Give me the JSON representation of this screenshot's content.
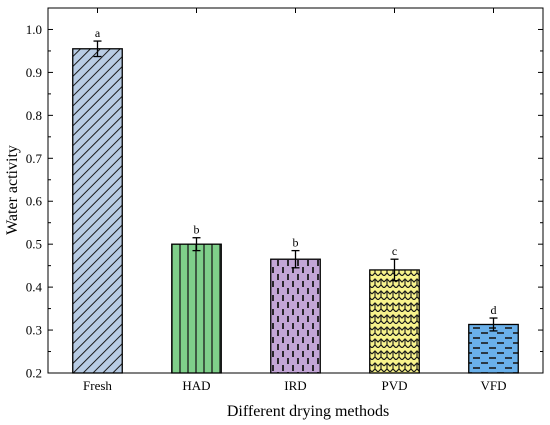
{
  "chart_data": {
    "type": "bar",
    "title": "",
    "xlabel": "Different drying methods",
    "ylabel": "Water activity",
    "categories": [
      "Fresh",
      "HAD",
      "IRD",
      "PVD",
      "VFD"
    ],
    "values": [
      0.955,
      0.5,
      0.465,
      0.44,
      0.313
    ],
    "errors": [
      0.018,
      0.015,
      0.02,
      0.025,
      0.015
    ],
    "significance_labels": [
      "a",
      "b",
      "b",
      "c",
      "d"
    ],
    "ylim": [
      0.2,
      1.05
    ],
    "yticks": [
      0.2,
      0.3,
      0.4,
      0.5,
      0.6,
      0.7,
      0.8,
      0.9,
      1.0
    ],
    "ytick_labels": [
      "0.2",
      "0.3",
      "0.4",
      "0.5",
      "0.6",
      "0.7",
      "0.8",
      "0.9",
      "1.0"
    ],
    "bar_colors": [
      "#b8cce4",
      "#7fcf8a",
      "#c3a6d6",
      "#f7f28c",
      "#6ab0ea"
    ],
    "bar_patterns": [
      "diagonal",
      "vertical",
      "dashed-vertical",
      "crosshatch-wave",
      "dashed-horizontal"
    ],
    "grid": false,
    "legend": "none"
  }
}
